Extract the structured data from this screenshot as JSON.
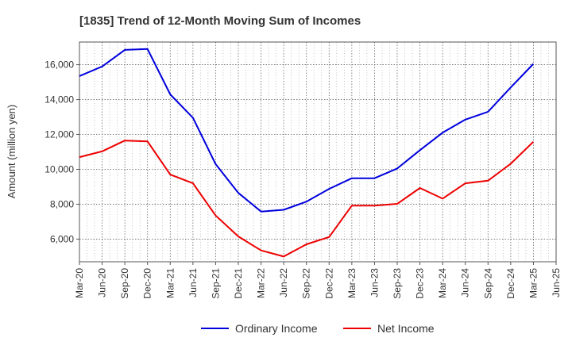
{
  "chart_data": {
    "type": "line",
    "title": "[1835]  Trend of 12-Month Moving Sum of Incomes",
    "xlabel": "",
    "ylabel": "Amount (million yen)",
    "ylim": [
      4700,
      17300
    ],
    "yticks": [
      6000,
      8000,
      10000,
      12000,
      14000,
      16000
    ],
    "ytick_labels": [
      "6,000",
      "8,000",
      "10,000",
      "12,000",
      "14,000",
      "16,000"
    ],
    "categories": [
      "Mar-20",
      "Jun-20",
      "Sep-20",
      "Dec-20",
      "Mar-21",
      "Jun-21",
      "Sep-21",
      "Dec-21",
      "Mar-22",
      "Jun-22",
      "Sep-22",
      "Dec-22",
      "Mar-23",
      "Jun-23",
      "Sep-23",
      "Dec-23",
      "Mar-24",
      "Jun-24",
      "Sep-24",
      "Dec-24",
      "Mar-25",
      "Jun-25"
    ],
    "grid": true,
    "legend_position": "bottom",
    "series": [
      {
        "name": "Ordinary Income",
        "color": "#0000dd",
        "values": [
          15350,
          15900,
          16850,
          16900,
          14300,
          12950,
          10300,
          8650,
          7580,
          7680,
          8150,
          8880,
          9490,
          9490,
          10050,
          11100,
          12100,
          12850,
          13300,
          14700,
          16050,
          null
        ]
      },
      {
        "name": "Net Income",
        "color": "#ee0000",
        "values": [
          10700,
          11030,
          11650,
          11600,
          9700,
          9200,
          7350,
          6150,
          5350,
          5000,
          5700,
          6120,
          7920,
          7920,
          8020,
          8930,
          8320,
          9200,
          9350,
          10320,
          11580,
          null
        ]
      }
    ]
  }
}
